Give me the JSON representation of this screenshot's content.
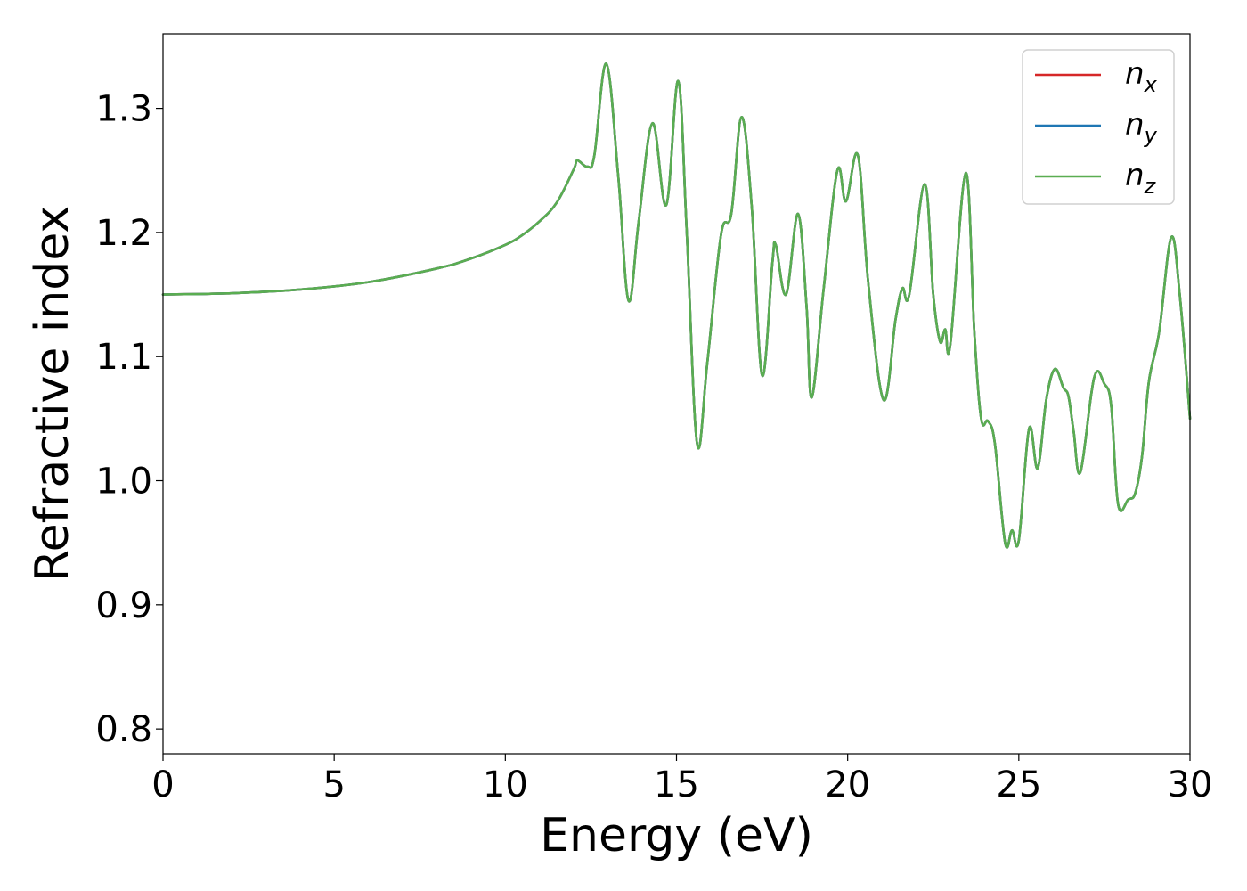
{
  "chart_data": {
    "type": "line",
    "xlabel": "Energy (eV)",
    "ylabel": "Refractive index",
    "xlim": [
      0,
      30
    ],
    "ylim": [
      0.78,
      1.36
    ],
    "xticks": [
      0,
      5,
      10,
      15,
      20,
      25,
      30
    ],
    "yticks": [
      0.8,
      0.9,
      1.0,
      1.1,
      1.2,
      1.3
    ],
    "xtick_labels": [
      "0",
      "5",
      "10",
      "15",
      "20",
      "25",
      "30"
    ],
    "ytick_labels": [
      "0.8",
      "0.9",
      "1.0",
      "1.1",
      "1.2",
      "1.3"
    ],
    "grid": false,
    "legend_position": "top-right",
    "x": [
      0,
      2,
      4,
      6,
      8,
      9,
      10,
      10.5,
      11,
      11.5,
      12,
      12.1,
      12.4,
      12.6,
      12.95,
      13.3,
      13.6,
      13.9,
      14.3,
      14.7,
      15.05,
      15.3,
      15.6,
      15.9,
      16.3,
      16.6,
      16.9,
      17.2,
      17.5,
      17.8,
      17.9,
      18.2,
      18.55,
      18.8,
      18.95,
      19.3,
      19.7,
      19.95,
      20.3,
      20.6,
      21.05,
      21.4,
      21.6,
      21.8,
      22.25,
      22.5,
      22.7,
      22.85,
      23.0,
      23.45,
      23.7,
      23.9,
      24.1,
      24.3,
      24.6,
      24.8,
      25.0,
      25.3,
      25.55,
      25.8,
      26.05,
      26.3,
      26.45,
      26.6,
      26.8,
      27.2,
      27.5,
      27.7,
      27.9,
      28.2,
      28.4,
      28.6,
      28.8,
      29.1,
      29.45,
      29.7,
      30.0
    ],
    "series": [
      {
        "name": "n_x",
        "color": "#d62728",
        "y": [
          1.15,
          1.151,
          1.154,
          1.16,
          1.171,
          1.179,
          1.19,
          1.198,
          1.209,
          1.224,
          1.251,
          1.258,
          1.253,
          1.262,
          1.336,
          1.245,
          1.145,
          1.21,
          1.288,
          1.222,
          1.322,
          1.2,
          1.03,
          1.095,
          1.198,
          1.215,
          1.293,
          1.22,
          1.085,
          1.175,
          1.19,
          1.15,
          1.215,
          1.14,
          1.067,
          1.155,
          1.25,
          1.225,
          1.262,
          1.16,
          1.065,
          1.13,
          1.155,
          1.15,
          1.239,
          1.15,
          1.112,
          1.122,
          1.11,
          1.248,
          1.12,
          1.05,
          1.048,
          1.03,
          0.95,
          0.96,
          0.952,
          1.042,
          1.01,
          1.065,
          1.09,
          1.075,
          1.068,
          1.04,
          1.007,
          1.083,
          1.078,
          1.06,
          0.981,
          0.985,
          0.99,
          1.02,
          1.08,
          1.12,
          1.196,
          1.15,
          1.05
        ]
      },
      {
        "name": "n_y",
        "color": "#1f77b4",
        "y": [
          1.15,
          1.151,
          1.154,
          1.16,
          1.171,
          1.179,
          1.19,
          1.198,
          1.209,
          1.224,
          1.251,
          1.258,
          1.253,
          1.262,
          1.336,
          1.245,
          1.145,
          1.21,
          1.288,
          1.222,
          1.322,
          1.2,
          1.03,
          1.095,
          1.198,
          1.215,
          1.293,
          1.22,
          1.085,
          1.175,
          1.19,
          1.15,
          1.215,
          1.14,
          1.067,
          1.155,
          1.25,
          1.225,
          1.262,
          1.16,
          1.065,
          1.13,
          1.155,
          1.15,
          1.239,
          1.15,
          1.112,
          1.122,
          1.11,
          1.248,
          1.12,
          1.05,
          1.048,
          1.03,
          0.95,
          0.96,
          0.952,
          1.042,
          1.01,
          1.065,
          1.09,
          1.075,
          1.068,
          1.04,
          1.007,
          1.083,
          1.078,
          1.06,
          0.981,
          0.985,
          0.99,
          1.02,
          1.08,
          1.12,
          1.196,
          1.15,
          1.05
        ]
      },
      {
        "name": "n_z",
        "color": "#5aad51",
        "y": [
          1.15,
          1.151,
          1.154,
          1.16,
          1.171,
          1.179,
          1.19,
          1.198,
          1.209,
          1.224,
          1.251,
          1.258,
          1.253,
          1.262,
          1.336,
          1.245,
          1.145,
          1.21,
          1.288,
          1.222,
          1.322,
          1.2,
          1.03,
          1.095,
          1.198,
          1.215,
          1.293,
          1.22,
          1.085,
          1.175,
          1.19,
          1.15,
          1.215,
          1.14,
          1.067,
          1.155,
          1.25,
          1.225,
          1.262,
          1.16,
          1.065,
          1.13,
          1.155,
          1.15,
          1.239,
          1.15,
          1.112,
          1.122,
          1.11,
          1.248,
          1.12,
          1.05,
          1.048,
          1.03,
          0.95,
          0.96,
          0.952,
          1.042,
          1.01,
          1.065,
          1.09,
          1.075,
          1.068,
          1.04,
          1.007,
          1.083,
          1.078,
          1.06,
          0.981,
          0.985,
          0.99,
          1.02,
          1.08,
          1.12,
          1.196,
          1.15,
          1.05
        ]
      }
    ],
    "legend": [
      {
        "base": "n",
        "sub": "x",
        "color": "#d62728"
      },
      {
        "base": "n",
        "sub": "y",
        "color": "#1f77b4"
      },
      {
        "base": "n",
        "sub": "z",
        "color": "#5aad51"
      }
    ]
  }
}
